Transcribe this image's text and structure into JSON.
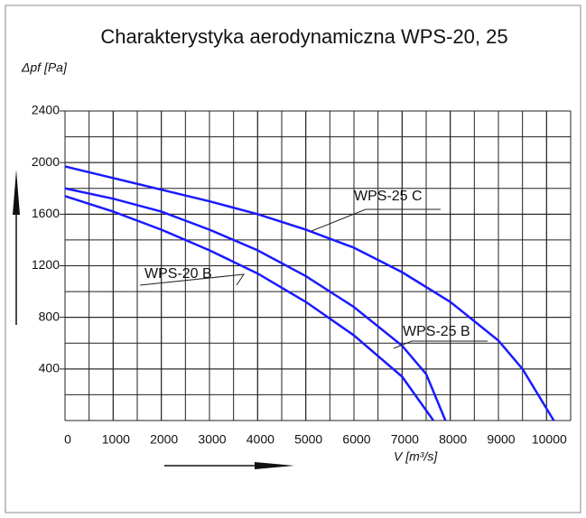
{
  "chart_data": {
    "type": "line",
    "title": "Charakterystyka aerodynamiczna  WPS-20, 25",
    "y_label": "Δpf [Pa]",
    "x_label": "V [m³/s]",
    "xlim": [
      0,
      10500
    ],
    "ylim": [
      0,
      2400
    ],
    "xticks": [
      0,
      1000,
      2000,
      3000,
      4000,
      5000,
      6000,
      7000,
      8000,
      9000,
      10000
    ],
    "yticks": [
      400,
      800,
      1200,
      1600,
      2000,
      2400
    ],
    "grid": true,
    "series": [
      {
        "name": "WPS-25 C",
        "color": "#1a1aff",
        "x": [
          0,
          1000,
          2000,
          3000,
          4000,
          5000,
          6000,
          7000,
          8000,
          9000,
          9500,
          10150
        ],
        "values": [
          1970,
          1880,
          1790,
          1700,
          1600,
          1480,
          1340,
          1150,
          920,
          620,
          400,
          0
        ]
      },
      {
        "name": "WPS-25 B",
        "color": "#1a1aff",
        "x": [
          0,
          1000,
          2000,
          3000,
          4000,
          5000,
          6000,
          7000,
          7500,
          7900
        ],
        "values": [
          1800,
          1720,
          1620,
          1480,
          1320,
          1120,
          880,
          580,
          360,
          0
        ]
      },
      {
        "name": "WPS-20 B",
        "color": "#1a1aff",
        "x": [
          0,
          1000,
          2000,
          3000,
          4000,
          5000,
          6000,
          7000,
          7650
        ],
        "values": [
          1740,
          1620,
          1480,
          1320,
          1140,
          920,
          660,
          340,
          0
        ]
      }
    ]
  }
}
